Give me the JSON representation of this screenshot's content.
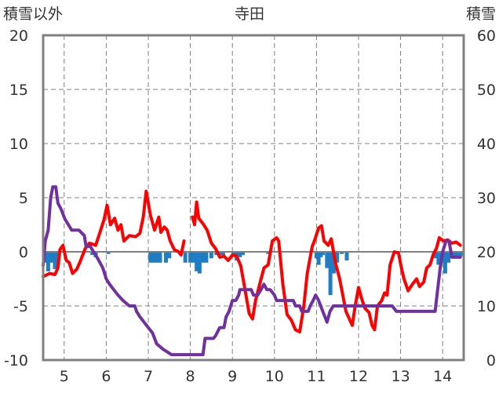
{
  "chart_data": {
    "type": "line",
    "title": "寺田",
    "left_axis_label": "積雪以外",
    "right_axis_label": "積雪",
    "y_left": {
      "min": -10,
      "max": 20,
      "ticks": [
        "20",
        "15",
        "10",
        "5",
        "0",
        "-5",
        "-10"
      ]
    },
    "y_right": {
      "min": 0,
      "max": 60,
      "ticks": [
        "60",
        "50",
        "40",
        "30",
        "20",
        "10",
        "0"
      ]
    },
    "x": {
      "min": 4.5,
      "max": 14.5,
      "tick_values": [
        5,
        6,
        7,
        8,
        9,
        10,
        11,
        12,
        13,
        14
      ],
      "tick_labels": [
        "5",
        "6",
        "7",
        "8",
        "9",
        "10",
        "11",
        "12",
        "13",
        "14"
      ]
    },
    "grid": {
      "vertical_dashed": true,
      "horizontal_dashed": true
    },
    "colors": {
      "temperature": "#ff0000",
      "snow_depth": "#7030a0",
      "precipitation": "#1f7dc4",
      "axis": "#808080",
      "grid": "#808080",
      "zero_line": "#808080"
    },
    "series": [
      {
        "axis": "left",
        "color": "#ff0000",
        "points": [
          [
            4.5,
            -2.3
          ],
          [
            4.65,
            -2.0
          ],
          [
            4.78,
            -2.1
          ],
          [
            4.85,
            -1.5
          ],
          [
            4.9,
            0.2
          ],
          [
            4.97,
            0.6
          ],
          [
            5.05,
            -0.8
          ],
          [
            5.12,
            -1.0
          ],
          [
            5.2,
            -2.0
          ],
          [
            5.3,
            -1.6
          ],
          [
            5.38,
            -0.9
          ],
          [
            5.45,
            -0.2
          ],
          [
            5.5,
            0.3
          ],
          [
            5.6,
            0.8
          ],
          [
            5.75,
            0.6
          ],
          [
            5.85,
            1.8
          ],
          [
            5.95,
            3.0
          ],
          [
            6.02,
            4.3
          ],
          [
            6.1,
            2.5
          ],
          [
            6.2,
            3.1
          ],
          [
            6.28,
            2.0
          ],
          [
            6.35,
            2.5
          ],
          [
            6.42,
            1.0
          ],
          [
            6.55,
            1.5
          ],
          [
            6.7,
            1.4
          ],
          [
            6.8,
            1.7
          ],
          [
            6.88,
            3.2
          ],
          [
            6.95,
            5.6
          ],
          [
            7.05,
            3.4
          ],
          [
            7.15,
            2.0
          ],
          [
            7.25,
            3.2
          ],
          [
            7.3,
            1.8
          ],
          [
            7.38,
            2.3
          ],
          [
            7.45,
            2.0
          ],
          [
            7.52,
            1.0
          ],
          [
            7.62,
            0.2
          ],
          [
            7.72,
            0.0
          ],
          [
            7.78,
            -0.3
          ],
          [
            7.85,
            1.0
          ],
          null,
          [
            8.05,
            3.2
          ],
          [
            8.1,
            2.5
          ],
          [
            8.15,
            4.6
          ],
          [
            8.2,
            3.1
          ],
          [
            8.3,
            2.6
          ],
          [
            8.4,
            2.0
          ],
          [
            8.5,
            0.8
          ],
          [
            8.6,
            0.3
          ],
          [
            8.7,
            -0.5
          ],
          [
            8.8,
            -0.4
          ],
          [
            8.9,
            -0.8
          ],
          [
            9.0,
            -0.3
          ],
          [
            9.1,
            -0.4
          ],
          [
            9.2,
            -1.3
          ],
          [
            9.3,
            -3.5
          ],
          [
            9.4,
            -5.7
          ],
          [
            9.48,
            -6.2
          ],
          [
            9.55,
            -4.5
          ],
          [
            9.65,
            -3.0
          ],
          [
            9.75,
            -1.5
          ],
          [
            9.85,
            -1.2
          ],
          [
            9.95,
            1.0
          ],
          [
            10.05,
            1.3
          ],
          [
            10.1,
            1.0
          ],
          [
            10.2,
            -3.0
          ],
          [
            10.3,
            -5.8
          ],
          [
            10.4,
            -6.3
          ],
          [
            10.5,
            -7.2
          ],
          [
            10.6,
            -7.4
          ],
          [
            10.7,
            -5.0
          ],
          [
            10.78,
            -2.0
          ],
          [
            10.85,
            -0.5
          ],
          [
            10.9,
            0.5
          ],
          [
            10.95,
            1.0
          ],
          [
            11.05,
            2.2
          ],
          [
            11.12,
            2.4
          ],
          [
            11.18,
            1.0
          ],
          [
            11.28,
            0.6
          ],
          [
            11.35,
            1.2
          ],
          [
            11.45,
            -1.0
          ],
          [
            11.55,
            -2.5
          ],
          [
            11.7,
            -5.5
          ],
          [
            11.85,
            -6.8
          ],
          [
            11.92,
            -5.0
          ],
          [
            12.0,
            -3.3
          ],
          [
            12.08,
            -4.4
          ],
          [
            12.15,
            -5.2
          ],
          [
            12.25,
            -5.6
          ],
          [
            12.32,
            -6.8
          ],
          [
            12.38,
            -7.2
          ],
          [
            12.45,
            -5.0
          ],
          [
            12.55,
            -4.5
          ],
          [
            12.62,
            -3.8
          ],
          [
            12.68,
            -4.0
          ],
          [
            12.75,
            -1.2
          ],
          [
            12.85,
            0.0
          ],
          [
            12.95,
            -0.1
          ],
          [
            13.02,
            -1.5
          ],
          [
            13.08,
            -2.5
          ],
          [
            13.18,
            -3.6
          ],
          [
            13.28,
            -3.0
          ],
          [
            13.38,
            -2.5
          ],
          [
            13.45,
            -3.2
          ],
          [
            13.55,
            -2.8
          ],
          [
            13.62,
            -1.5
          ],
          [
            13.7,
            -1.2
          ],
          [
            13.78,
            -0.2
          ],
          [
            13.85,
            0.3
          ],
          [
            13.92,
            1.3
          ],
          [
            14.02,
            1.0
          ],
          [
            14.12,
            1.1
          ],
          [
            14.22,
            0.8
          ],
          [
            14.32,
            0.9
          ],
          [
            14.42,
            0.6
          ]
        ]
      },
      {
        "axis": "right",
        "color": "#7030a0",
        "points": [
          [
            4.5,
            17.5
          ],
          [
            4.55,
            22
          ],
          [
            4.62,
            24
          ],
          [
            4.68,
            30
          ],
          [
            4.73,
            32
          ],
          [
            4.8,
            32
          ],
          [
            4.85,
            29
          ],
          [
            4.92,
            28
          ],
          [
            5.02,
            26
          ],
          [
            5.1,
            25
          ],
          [
            5.18,
            24
          ],
          [
            5.22,
            24
          ],
          [
            5.35,
            24
          ],
          [
            5.48,
            23
          ],
          [
            5.52,
            21
          ],
          [
            5.62,
            21
          ],
          [
            5.7,
            20
          ],
          [
            5.78,
            19
          ],
          [
            5.85,
            18
          ],
          [
            5.92,
            17
          ],
          [
            6.0,
            15
          ],
          [
            6.08,
            14
          ],
          [
            6.18,
            13
          ],
          [
            6.28,
            12
          ],
          [
            6.4,
            11
          ],
          [
            6.55,
            10
          ],
          [
            6.68,
            10
          ],
          [
            6.72,
            9
          ],
          [
            6.8,
            8
          ],
          [
            6.9,
            7
          ],
          [
            7.0,
            6
          ],
          [
            7.1,
            5
          ],
          [
            7.2,
            3
          ],
          [
            7.35,
            2
          ],
          [
            7.45,
            1.5
          ],
          [
            7.55,
            1
          ],
          [
            7.65,
            1
          ],
          [
            7.75,
            1
          ],
          [
            7.9,
            1
          ],
          [
            8.05,
            1
          ],
          [
            8.15,
            1
          ],
          [
            8.3,
            1
          ],
          [
            8.35,
            4
          ],
          [
            8.45,
            4
          ],
          [
            8.55,
            4
          ],
          [
            8.6,
            4.5
          ],
          [
            8.7,
            6
          ],
          [
            8.8,
            6
          ],
          [
            8.85,
            8
          ],
          [
            8.92,
            9
          ],
          [
            9.0,
            11
          ],
          [
            9.08,
            11
          ],
          [
            9.15,
            12
          ],
          [
            9.18,
            13
          ],
          [
            9.25,
            13
          ],
          [
            9.32,
            13
          ],
          [
            9.45,
            13
          ],
          [
            9.5,
            12
          ],
          [
            9.6,
            12
          ],
          [
            9.68,
            13
          ],
          [
            9.75,
            14
          ],
          [
            9.82,
            13
          ],
          [
            9.9,
            13
          ],
          [
            10.0,
            12
          ],
          [
            10.05,
            11
          ],
          [
            10.15,
            11
          ],
          [
            10.3,
            11
          ],
          [
            10.45,
            11
          ],
          [
            10.5,
            10
          ],
          [
            10.6,
            10
          ],
          [
            10.65,
            9
          ],
          [
            10.72,
            9
          ],
          [
            10.8,
            9
          ],
          [
            10.85,
            10
          ],
          [
            10.92,
            11
          ],
          [
            10.98,
            12
          ],
          [
            11.05,
            11
          ],
          [
            11.1,
            10
          ],
          [
            11.15,
            9
          ],
          [
            11.2,
            8
          ],
          [
            11.25,
            7
          ],
          [
            11.32,
            9
          ],
          [
            11.4,
            10
          ],
          [
            11.55,
            10
          ],
          [
            11.7,
            10
          ],
          [
            11.9,
            10
          ],
          [
            12.05,
            10
          ],
          [
            12.2,
            10
          ],
          [
            12.4,
            10
          ],
          [
            12.65,
            10
          ],
          [
            12.8,
            10
          ],
          [
            12.9,
            9
          ],
          [
            13.05,
            9
          ],
          [
            13.25,
            9
          ],
          [
            13.45,
            9
          ],
          [
            13.62,
            9
          ],
          [
            13.82,
            9
          ],
          [
            13.88,
            13
          ],
          [
            13.94,
            17
          ],
          [
            14.0,
            20
          ],
          [
            14.08,
            22
          ],
          [
            14.15,
            22
          ],
          [
            14.22,
            19
          ],
          [
            14.3,
            19
          ],
          [
            14.42,
            19
          ]
        ]
      }
    ],
    "precipitation_bars": {
      "axis": "left",
      "color": "#1f7dc4",
      "values": [
        [
          4.55,
          -1.0
        ],
        [
          4.62,
          -1.8
        ],
        [
          4.7,
          -1.0
        ],
        [
          4.78,
          -1.6
        ],
        [
          4.85,
          -1.0
        ],
        [
          5.67,
          -0.3
        ],
        [
          5.75,
          -0.5
        ],
        [
          6.05,
          -0.2
        ],
        [
          7.05,
          -1.0
        ],
        [
          7.12,
          -1.0
        ],
        [
          7.2,
          -1.0
        ],
        [
          7.28,
          -1.0
        ],
        [
          7.42,
          -1.0
        ],
        [
          7.5,
          -0.6
        ],
        [
          7.88,
          -1.0
        ],
        [
          8.0,
          -1.0
        ],
        [
          8.08,
          -1.0
        ],
        [
          8.15,
          -1.8
        ],
        [
          8.22,
          -2.0
        ],
        [
          8.3,
          -1.0
        ],
        [
          8.38,
          -1.0
        ],
        [
          8.5,
          -0.6
        ],
        [
          8.62,
          -0.3
        ],
        [
          8.7,
          -0.3
        ],
        [
          8.78,
          -0.3
        ],
        [
          9.02,
          -0.3
        ],
        [
          9.1,
          -0.8
        ],
        [
          9.18,
          -0.5
        ],
        [
          9.25,
          -0.3
        ],
        [
          9.85,
          -0.2
        ],
        [
          11.0,
          -0.6
        ],
        [
          11.05,
          -1.2
        ],
        [
          11.1,
          -0.5
        ],
        [
          11.15,
          -0.3
        ],
        [
          11.25,
          -1.5
        ],
        [
          11.33,
          -4.0
        ],
        [
          11.41,
          -2.0
        ],
        [
          11.49,
          -1.0
        ],
        [
          11.6,
          -0.2
        ],
        [
          11.72,
          -0.8
        ],
        [
          13.82,
          -0.6
        ],
        [
          13.9,
          -1.2
        ],
        [
          13.98,
          -1.0
        ],
        [
          14.06,
          -2.0
        ],
        [
          14.14,
          -1.0
        ],
        [
          14.22,
          -0.5
        ],
        [
          14.3,
          -0.4
        ],
        [
          14.38,
          -0.4
        ],
        [
          14.46,
          -0.4
        ]
      ]
    }
  }
}
